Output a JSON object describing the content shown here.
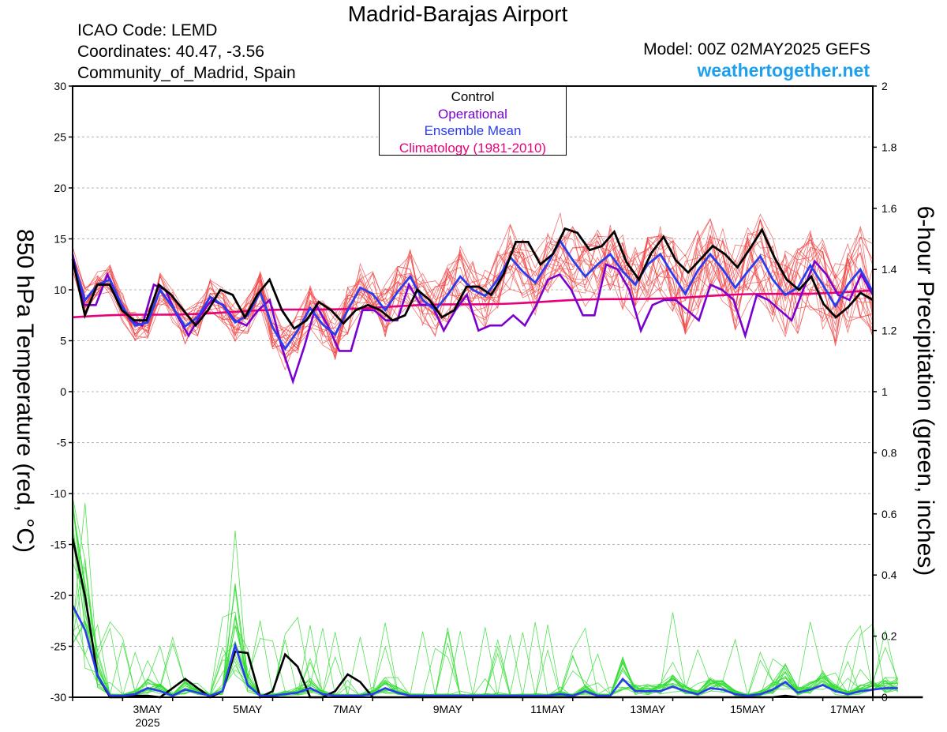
{
  "header": {
    "title": "Madrid-Barajas Airport",
    "icao": "ICAO Code: LEMD",
    "coords": "Coordinates: 40.47, -3.56",
    "region": "Community_of_Madrid, Spain",
    "model": "Model: 00Z 02MAY2025 GEFS",
    "site": "weathertogether.net"
  },
  "legend": {
    "control": "Control",
    "operational": "Operational",
    "mean": "Ensemble Mean",
    "clim": "Climatology (1981-2010)"
  },
  "colors": {
    "control": "#000000",
    "operational": "#7b00d0",
    "mean": "#2a3cf0",
    "clim": "#e8007a",
    "members_temp": "#f04040",
    "members_precip": "#33dd33",
    "site": "#1ea0f0"
  },
  "chart_data": {
    "type": "line",
    "xlabel": "",
    "ylabel_left": "850 hPa Temperature (red, °C)",
    "ylabel_right": "6-hour Precipitation (green, inches)",
    "ylim_left": [
      -30,
      30
    ],
    "ylim_right": [
      0,
      2
    ],
    "y_ticks_left": [
      "30",
      "25",
      "20",
      "15",
      "10",
      "5",
      "0",
      "-5",
      "-10",
      "-15",
      "-20",
      "-25",
      "-30"
    ],
    "y_ticks_right": [
      "2",
      "1.8",
      "1.6",
      "1.4",
      "1.2",
      "1",
      "0.8",
      "0.6",
      "0.4",
      "0.2",
      "0"
    ],
    "x_ticks": [
      {
        "label": "3MAY",
        "sub": "2025",
        "day": 3
      },
      {
        "label": "5MAY",
        "sub": "",
        "day": 5
      },
      {
        "label": "7MAY",
        "sub": "",
        "day": 7
      },
      {
        "label": "9MAY",
        "sub": "",
        "day": 9
      },
      {
        "label": "11MAY",
        "sub": "",
        "day": 11
      },
      {
        "label": "13MAY",
        "sub": "",
        "day": 13
      },
      {
        "label": "15MAY",
        "sub": "",
        "day": 15
      },
      {
        "label": "17MAY",
        "sub": "",
        "day": 17
      }
    ],
    "x_start_day": 2.0,
    "x_step_days": 0.25,
    "x_end_day": 18.0,
    "temperature": {
      "control": [
        13,
        7.5,
        10.5,
        10.5,
        8,
        7,
        7,
        10.5,
        9.5,
        8,
        6.5,
        8,
        10,
        9.5,
        7.3,
        9.5,
        11,
        8,
        6.2,
        7,
        8.8,
        8,
        6.7,
        8,
        8.5,
        8,
        7,
        7.5,
        10,
        9,
        7.3,
        8,
        10.3,
        10.3,
        9.5,
        11.5,
        14.7,
        14.7,
        12.5,
        13.5,
        16,
        15.6,
        13.9,
        14.3,
        15.7,
        12.7,
        11,
        13.6,
        15.2,
        12.9,
        11.7,
        13,
        14.3,
        13.5,
        12.2,
        14,
        15.9,
        13.2,
        11,
        10,
        11.3,
        8.6,
        7.3,
        8.3,
        9.7,
        9
      ],
      "operational": [
        13.5,
        8.5,
        8.5,
        11.5,
        9,
        7,
        6.5,
        10.5,
        10,
        7.5,
        5.5,
        7.5,
        9,
        8.5,
        7,
        6.5,
        8,
        9,
        4.5,
        1,
        4.5,
        8.5,
        6.5,
        4,
        4,
        8,
        8,
        7,
        7,
        10.5,
        8.5,
        8.5,
        6,
        8,
        9.5,
        6,
        6.5,
        6.5,
        7.5,
        6.5,
        8.5,
        11,
        11.5,
        10,
        7.5,
        7.5,
        12.5,
        12,
        10,
        6,
        8.5,
        9,
        9,
        8,
        7,
        10.5,
        10,
        9,
        5.5,
        9.5,
        9,
        8,
        7,
        10,
        12.8,
        11.5,
        9.5,
        9,
        11.5,
        9.5
      ],
      "mean": [
        13,
        9,
        10.5,
        11,
        8.3,
        6.5,
        6.8,
        10,
        8.3,
        6.4,
        7.3,
        9.3,
        8.5,
        6.8,
        7.5,
        9.8,
        6.3,
        4.2,
        6,
        8.2,
        6.6,
        5.6,
        8,
        10.2,
        9.6,
        8,
        9.8,
        11.3,
        9,
        8,
        9.5,
        11.3,
        10,
        9.4,
        11,
        13.2,
        11.8,
        10.7,
        12.6,
        14.8,
        12.9,
        11.3,
        12.5,
        13.5,
        11.8,
        10.5,
        12.5,
        13.5,
        11.5,
        9.6,
        11.9,
        13.5,
        12,
        10.2,
        11.8,
        13.3,
        11,
        9.5,
        10.2,
        12.4,
        10.5,
        8.4,
        10.5,
        12,
        9.8
      ],
      "clim_start": 7.3,
      "clim_end": 9.9
    },
    "precip": {
      "control": [
        0.52,
        0.33,
        0.07,
        0.0,
        0.0,
        0.005,
        0.005,
        0.0,
        0.03,
        0.06,
        0.03,
        0.0,
        0.02,
        0.15,
        0.145,
        0.0,
        0.02,
        0.14,
        0.1,
        0.0,
        0.0,
        0.02,
        0.075,
        0.05,
        0.0,
        0.0,
        0.0,
        0.0,
        0.0,
        0.0,
        0.0,
        0.0,
        0.0,
        0.0,
        0.0,
        0.0,
        0.0,
        0.0,
        0.0,
        0.0,
        0.0,
        0.0,
        0.0,
        0.0,
        0.0,
        0.0,
        0.0,
        0.0,
        0.0,
        0.0,
        0.0,
        0.0,
        0.0,
        0.0,
        0.0,
        0.0,
        0.0,
        0.005,
        0.0,
        0.0,
        0.0,
        0.0,
        0.0,
        0.0,
        0.0,
        0.0,
        0.0,
        0.0,
        0.0
      ],
      "mean": [
        0.3,
        0.22,
        0.07,
        0.005,
        0.005,
        0.01,
        0.03,
        0.02,
        0.005,
        0.025,
        0.015,
        0.005,
        0.02,
        0.17,
        0.04,
        0.005,
        0.005,
        0.01,
        0.015,
        0.03,
        0.01,
        0.005,
        0.005,
        0.005,
        0.01,
        0.03,
        0.015,
        0.005,
        0.005,
        0.005,
        0.005,
        0.005,
        0.005,
        0.005,
        0.005,
        0.005,
        0.005,
        0.005,
        0.005,
        0.01,
        0.005,
        0.02,
        0.005,
        0.005,
        0.06,
        0.02,
        0.02,
        0.02,
        0.035,
        0.02,
        0.01,
        0.03,
        0.025,
        0.01,
        0.005,
        0.01,
        0.025,
        0.05,
        0.015,
        0.025,
        0.04,
        0.02,
        0.01,
        0.02,
        0.025,
        0.03,
        0.03
      ]
    }
  }
}
